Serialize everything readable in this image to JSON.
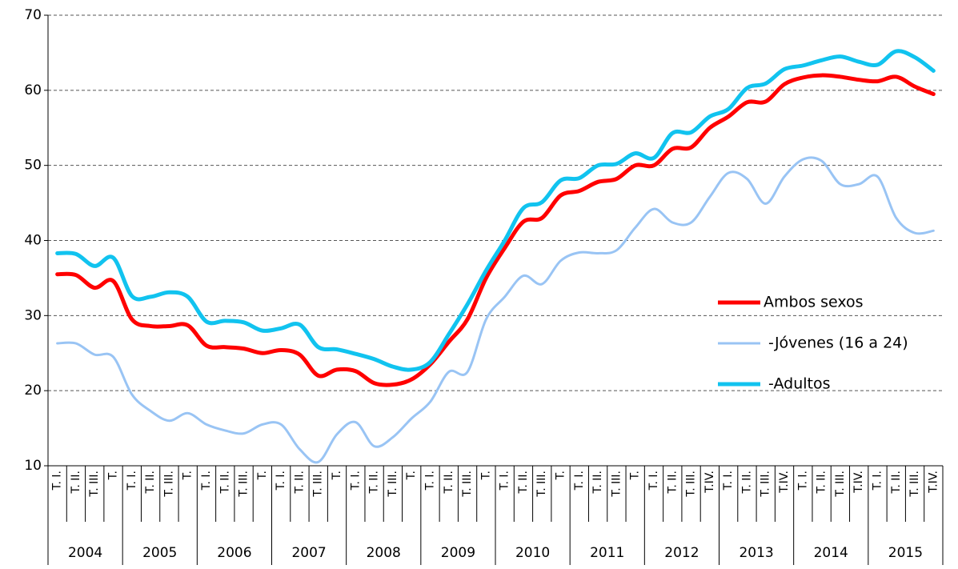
{
  "chart_data": {
    "type": "line",
    "categories": [
      "T. I.",
      "T. II.",
      "T. III.",
      "T.",
      "T. I.",
      "T. II.",
      "T. III.",
      "T.",
      "T. I.",
      "T. II.",
      "T. III.",
      "T.",
      "T. I.",
      "T. II.",
      "T. III.",
      "T.",
      "T. I.",
      "T. II.",
      "T. III.",
      "T.",
      "T. I.",
      "T. II.",
      "T. III.",
      "T.",
      "T. I.",
      "T. II.",
      "T. III.",
      "T.",
      "T. I.",
      "T. II.",
      "T. III.",
      "T.",
      "T. I.",
      "T. II.",
      "T. III.",
      "T.IV.",
      "T. I.",
      "T. II.",
      "T. III.",
      "T.IV.",
      "T. I.",
      "T. II.",
      "T. III.",
      "T.IV.",
      "T. I.",
      "T. II.",
      "T. III.",
      "T.IV."
    ],
    "years": [
      "2004",
      "2005",
      "2006",
      "2007",
      "2008",
      "2009",
      "2010",
      "2011",
      "2012",
      "2013",
      "2014",
      "2015"
    ],
    "series": [
      {
        "name": "Ambos sexos",
        "color": "#ff0000",
        "width": 5,
        "values": [
          35.5,
          35.4,
          33.7,
          34.6,
          29.5,
          28.6,
          28.6,
          28.7,
          26.0,
          25.8,
          25.6,
          25.0,
          25.4,
          24.8,
          22.0,
          22.8,
          22.6,
          21.0,
          20.8,
          21.5,
          23.5,
          26.5,
          29.5,
          35.0,
          39.0,
          42.5,
          43.0,
          46.0,
          46.6,
          47.8,
          48.2,
          50.0,
          50.0,
          52.2,
          52.4,
          55.0,
          56.5,
          58.4,
          58.5,
          60.8,
          61.7,
          62.0,
          61.8,
          61.4,
          61.2,
          61.8,
          60.5,
          59.5
        ]
      },
      {
        "name": " -Jóvenes (16 a 24)",
        "color": "#99c4f4",
        "width": 3,
        "values": [
          26.3,
          26.3,
          24.8,
          24.5,
          19.5,
          17.3,
          16.0,
          17.0,
          15.5,
          14.7,
          14.3,
          15.5,
          15.5,
          12.2,
          10.5,
          14.2,
          15.8,
          12.6,
          13.8,
          16.3,
          18.5,
          22.5,
          22.5,
          29.5,
          32.5,
          35.3,
          34.2,
          37.3,
          38.4,
          38.3,
          38.7,
          41.7,
          44.2,
          42.4,
          42.4,
          45.8,
          49.0,
          48.2,
          44.9,
          48.5,
          50.8,
          50.6,
          47.5,
          47.5,
          48.5,
          43.0,
          41.0,
          41.3
        ]
      },
      {
        "name": " -Adultos",
        "color": "#11c3ef",
        "width": 5,
        "values": [
          38.3,
          38.2,
          36.6,
          37.7,
          32.6,
          32.5,
          33.1,
          32.5,
          29.2,
          29.3,
          29.1,
          28.0,
          28.3,
          28.8,
          25.8,
          25.5,
          24.9,
          24.2,
          23.2,
          22.8,
          23.8,
          27.5,
          31.5,
          36.0,
          40.0,
          44.3,
          45.1,
          48.0,
          48.3,
          50.0,
          50.2,
          51.6,
          51.0,
          54.3,
          54.4,
          56.5,
          57.5,
          60.3,
          60.9,
          62.8,
          63.3,
          64.0,
          64.5,
          63.8,
          63.4,
          65.2,
          64.4,
          62.6
        ]
      }
    ],
    "ylim": [
      10,
      70
    ],
    "yticks": [
      10,
      20,
      30,
      40,
      50,
      60,
      70
    ],
    "grid": true,
    "legend": "right"
  }
}
